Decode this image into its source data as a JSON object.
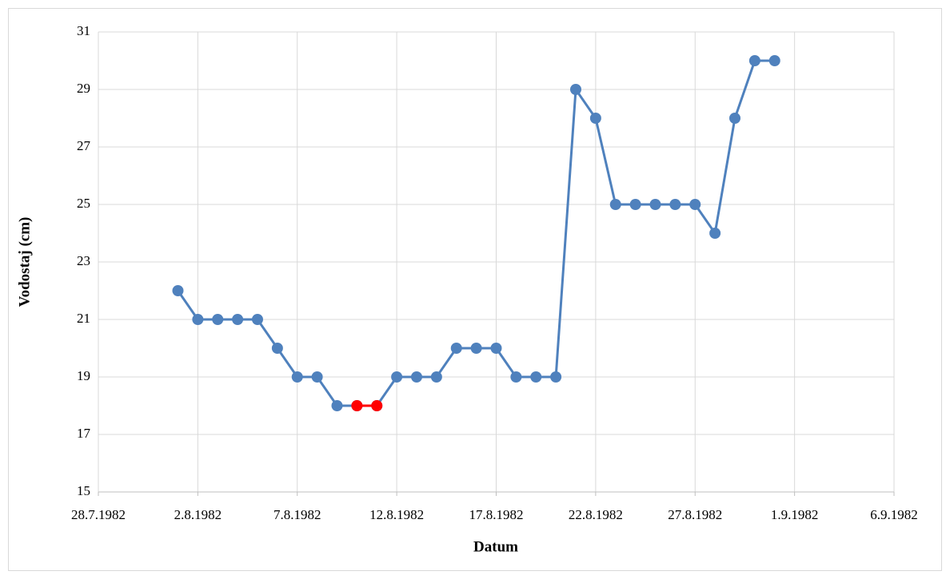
{
  "chart_data": {
    "type": "line",
    "x_label": "Datum",
    "y_label": "Vodostaj (cm)",
    "x": [
      "1.8.1982",
      "2.8.1982",
      "3.8.1982",
      "4.8.1982",
      "5.8.1982",
      "6.8.1982",
      "7.8.1982",
      "8.8.1982",
      "9.8.1982",
      "10.8.1982",
      "11.8.1982",
      "12.8.1982",
      "13.8.1982",
      "14.8.1982",
      "15.8.1982",
      "16.8.1982",
      "17.8.1982",
      "18.8.1982",
      "19.8.1982",
      "20.8.1982",
      "21.8.1982",
      "22.8.1982",
      "23.8.1982",
      "24.8.1982",
      "25.8.1982",
      "26.8.1982",
      "27.8.1982",
      "28.8.1982",
      "29.8.1982",
      "30.8.1982",
      "31.8.1982"
    ],
    "series": [
      {
        "color": "#4f81bd",
        "values": [
          22,
          21,
          21,
          21,
          21,
          20,
          19,
          19,
          18,
          18,
          18,
          19,
          19,
          19,
          20,
          20,
          20,
          19,
          19,
          19,
          29,
          28,
          25,
          25,
          25,
          25,
          25,
          24,
          28,
          30,
          30
        ]
      },
      {
        "color": "#ff0000",
        "values": [
          null,
          null,
          null,
          null,
          null,
          null,
          null,
          null,
          null,
          18,
          18,
          null,
          null,
          null,
          null,
          null,
          null,
          null,
          null,
          null,
          null,
          null,
          null,
          null,
          null,
          null,
          null,
          null,
          null,
          null,
          null
        ]
      }
    ],
    "xlim": [
      "28.7.1982",
      "6.9.1982"
    ],
    "xticks": [
      "28.7.1982",
      "2.8.1982",
      "7.8.1982",
      "12.8.1982",
      "17.8.1982",
      "22.8.1982",
      "27.8.1982",
      "1.9.1982",
      "6.9.1982"
    ],
    "ylim": [
      15,
      31
    ],
    "yticks": [
      15,
      17,
      19,
      21,
      23,
      25,
      27,
      29,
      31
    ],
    "grid": true
  }
}
